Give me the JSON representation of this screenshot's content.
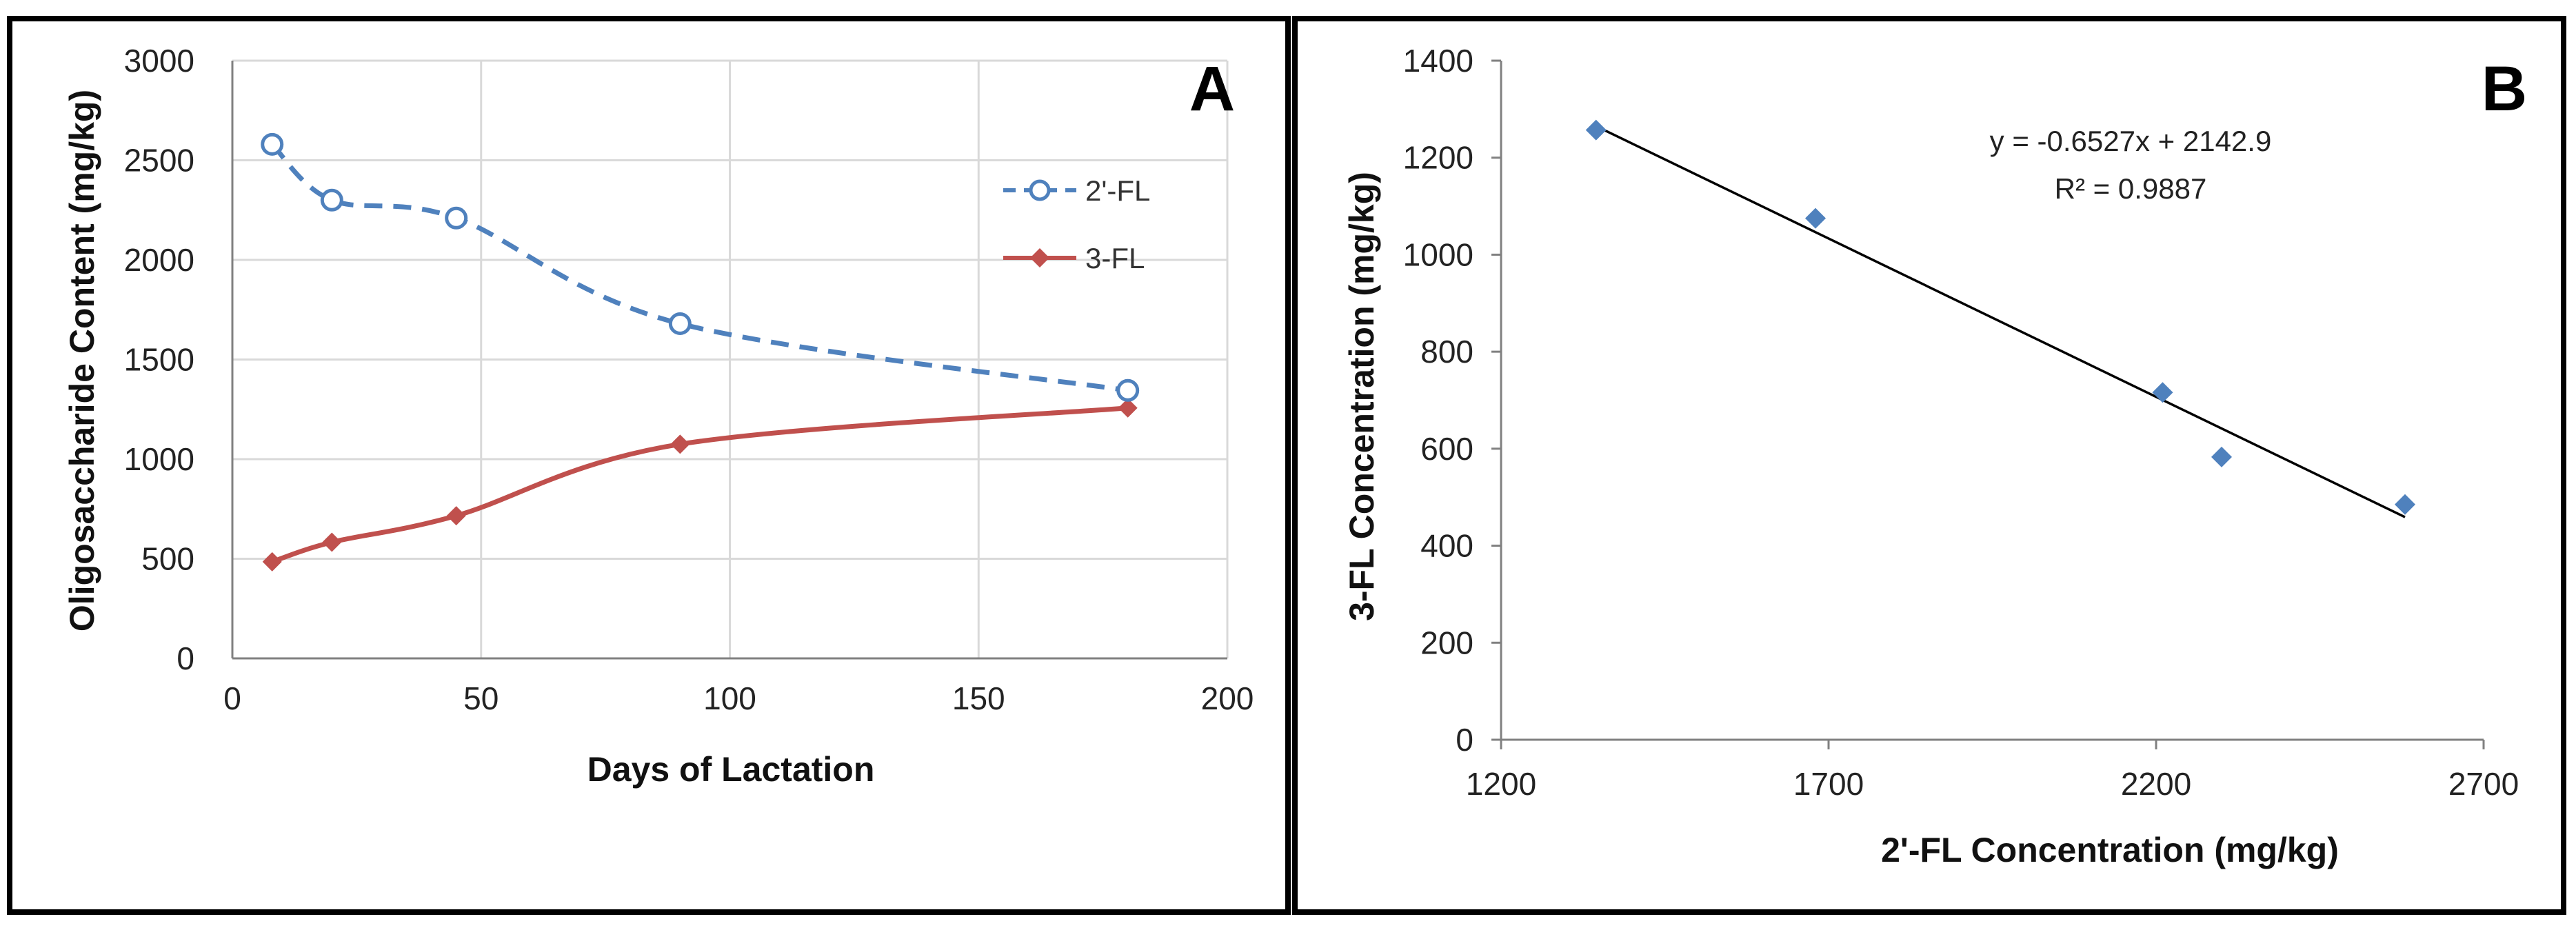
{
  "colors": {
    "series_2fl": "#4F81BD",
    "series_3fl": "#C0504D",
    "trendline": "#000000",
    "grid": "#D9D9D9",
    "axis": "#808080",
    "frame": "#000000"
  },
  "chart_data": [
    {
      "panel_label": "A",
      "type": "line",
      "xlabel": "Days of Lactation",
      "ylabel": "Oligosaccharide Content (mg/kg)",
      "xlim": [
        0,
        200
      ],
      "ylim": [
        0,
        3000
      ],
      "x_ticks": [
        "0",
        "50",
        "100",
        "150",
        "200"
      ],
      "y_ticks": [
        "0",
        "500",
        "1000",
        "1500",
        "2000",
        "2500",
        "3000"
      ],
      "grid": true,
      "legend_position": "right",
      "series": [
        {
          "name": "2'-FL",
          "style": "dashed, open circle markers",
          "x": [
            8,
            20,
            45,
            90,
            180
          ],
          "y": [
            2580,
            2300,
            2210,
            1680,
            1345
          ]
        },
        {
          "name": "3-FL",
          "style": "solid, diamond markers",
          "x": [
            8,
            20,
            45,
            90,
            180
          ],
          "y": [
            485,
            583,
            716,
            1075,
            1257
          ]
        }
      ]
    },
    {
      "panel_label": "B",
      "type": "scatter",
      "xlabel": "2'-FL Concentration (mg/kg)",
      "ylabel": "3-FL Concentration (mg/kg)",
      "xlim": [
        1200,
        2700
      ],
      "ylim": [
        0,
        1400
      ],
      "x_ticks": [
        "1200",
        "1700",
        "2200",
        "2700"
      ],
      "y_ticks": [
        "0",
        "200",
        "400",
        "600",
        "800",
        "1000",
        "1200",
        "1400"
      ],
      "grid": false,
      "points": [
        {
          "x": 1345,
          "y": 1257
        },
        {
          "x": 1680,
          "y": 1075
        },
        {
          "x": 2210,
          "y": 716
        },
        {
          "x": 2300,
          "y": 583
        },
        {
          "x": 2580,
          "y": 485
        }
      ],
      "trendline": {
        "slope": -0.6527,
        "intercept": 2142.9,
        "x_range": [
          1345,
          2580
        ]
      },
      "equation": "y = -0.6527x + 2142.9",
      "r_squared": "R² = 0.9887"
    }
  ]
}
